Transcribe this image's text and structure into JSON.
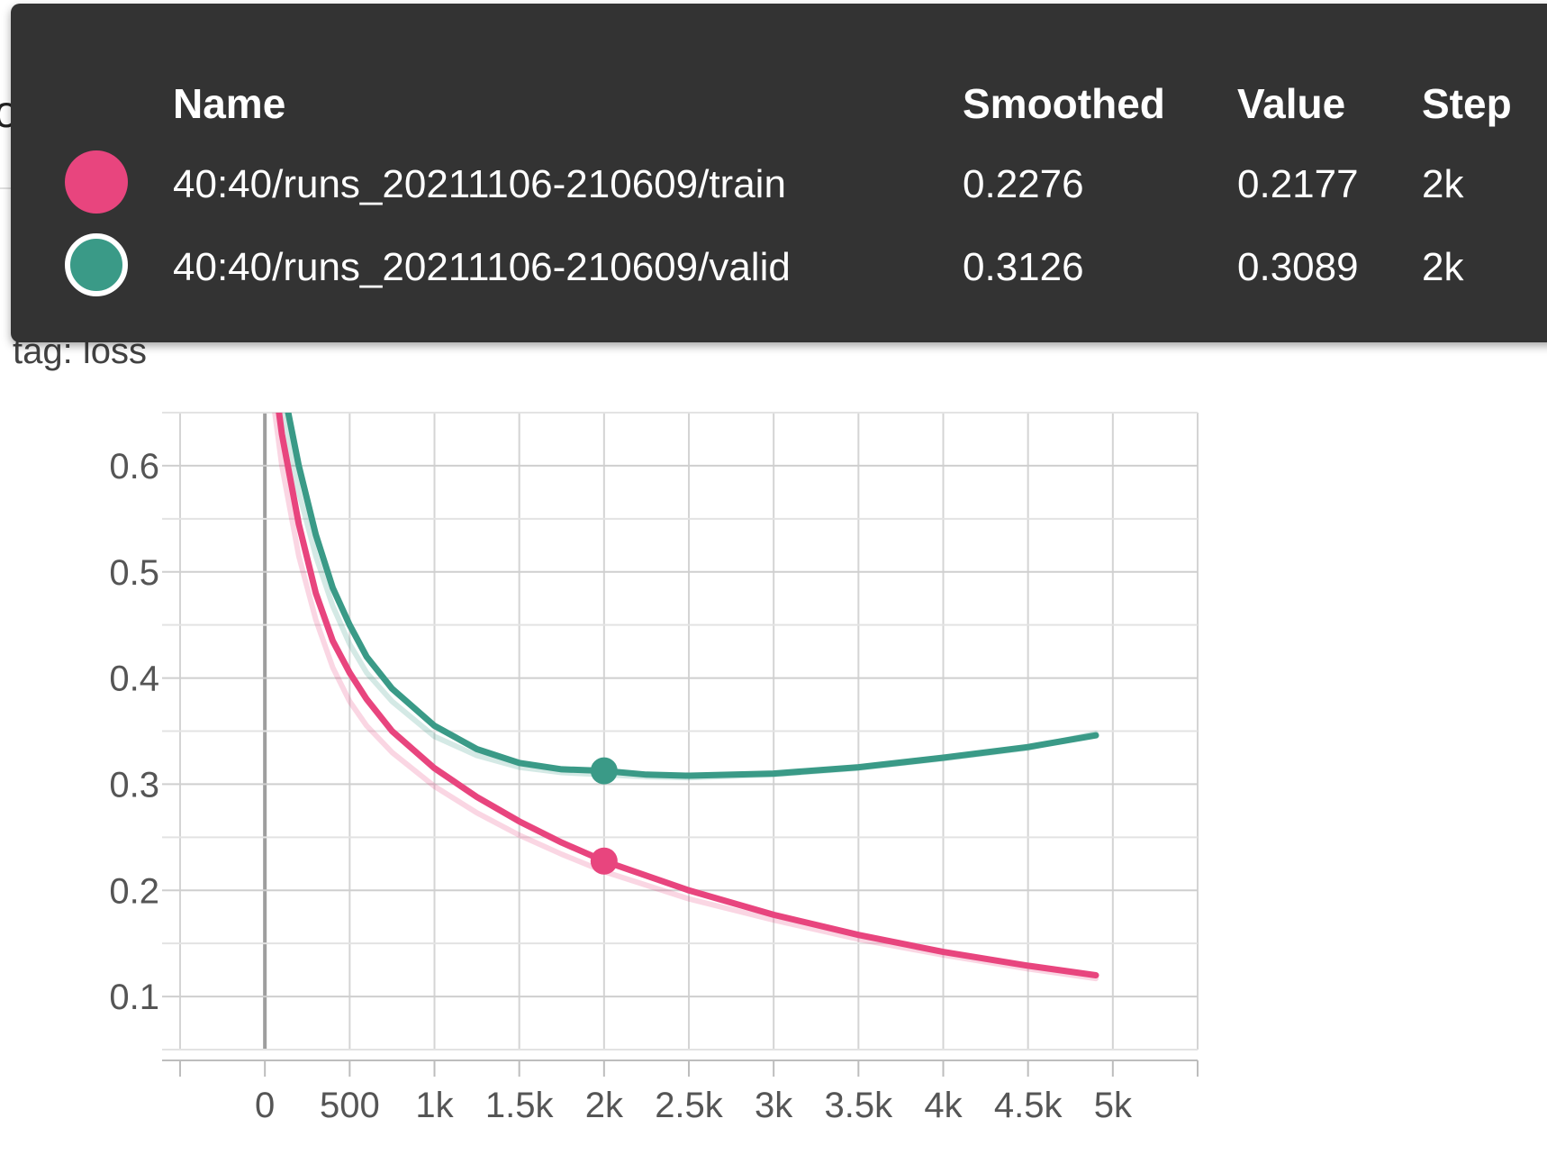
{
  "card": {
    "title": "loss"
  },
  "tooltip": {
    "headers": {
      "name": "Name",
      "smoothed": "Smoothed",
      "value": "Value",
      "step": "Step"
    },
    "rows": [
      {
        "name": "40:40/runs_20211106-210609/train",
        "smoothed": "0.2276",
        "value": "0.2177",
        "step": "2k",
        "color": "#e8457e",
        "selected": false
      },
      {
        "name": "40:40/runs_20211106-210609/valid",
        "smoothed": "0.3126",
        "value": "0.3089",
        "step": "2k",
        "color": "#3a9a87",
        "selected": true
      }
    ]
  },
  "chart": {
    "title": "loss",
    "tag": "tag: loss"
  },
  "chart_data": {
    "type": "line",
    "title": "loss",
    "xlabel": "",
    "ylabel": "",
    "xlim": [
      -500,
      5500
    ],
    "ylim": [
      0.05,
      0.65
    ],
    "grid": true,
    "x_ticks": [
      0,
      500,
      1000,
      1500,
      2000,
      2500,
      3000,
      3500,
      4000,
      4500,
      5000
    ],
    "x_tick_labels": [
      "0",
      "500",
      "1k",
      "1.5k",
      "2k",
      "2.5k",
      "3k",
      "3.5k",
      "4k",
      "4.5k",
      "5k"
    ],
    "y_ticks": [
      0.1,
      0.2,
      0.3,
      0.4,
      0.5,
      0.6
    ],
    "y_tick_labels": [
      "0.1",
      "0.2",
      "0.3",
      "0.4",
      "0.5",
      "0.6"
    ],
    "hover_step": 2000,
    "series": [
      {
        "name": "40:40/runs_20211106-210609/train",
        "color": "#e8457e",
        "x": [
          50,
          100,
          200,
          300,
          400,
          500,
          600,
          750,
          1000,
          1250,
          1500,
          1750,
          2000,
          2500,
          3000,
          3500,
          4000,
          4500,
          4900
        ],
        "y": [
          0.69,
          0.63,
          0.545,
          0.48,
          0.435,
          0.405,
          0.38,
          0.35,
          0.315,
          0.288,
          0.265,
          0.245,
          0.2276,
          0.2,
          0.177,
          0.158,
          0.142,
          0.129,
          0.12
        ],
        "raw_y": [
          0.66,
          0.6,
          0.515,
          0.455,
          0.41,
          0.378,
          0.355,
          0.33,
          0.298,
          0.273,
          0.252,
          0.234,
          0.2177,
          0.192,
          0.172,
          0.154,
          0.139,
          0.126,
          0.117
        ]
      },
      {
        "name": "40:40/runs_20211106-210609/valid",
        "color": "#3a9a87",
        "x": [
          100,
          200,
          300,
          400,
          500,
          600,
          750,
          1000,
          1250,
          1500,
          1750,
          2000,
          2250,
          2500,
          3000,
          3500,
          4000,
          4500,
          4900
        ],
        "y": [
          0.68,
          0.6,
          0.535,
          0.485,
          0.45,
          0.42,
          0.39,
          0.355,
          0.333,
          0.32,
          0.314,
          0.3126,
          0.309,
          0.308,
          0.31,
          0.316,
          0.325,
          0.335,
          0.346
        ],
        "raw_y": [
          0.66,
          0.575,
          0.515,
          0.468,
          0.432,
          0.405,
          0.378,
          0.345,
          0.327,
          0.316,
          0.311,
          0.3089,
          0.307,
          0.306,
          0.309,
          0.315,
          0.324,
          0.334,
          0.348
        ]
      }
    ]
  }
}
